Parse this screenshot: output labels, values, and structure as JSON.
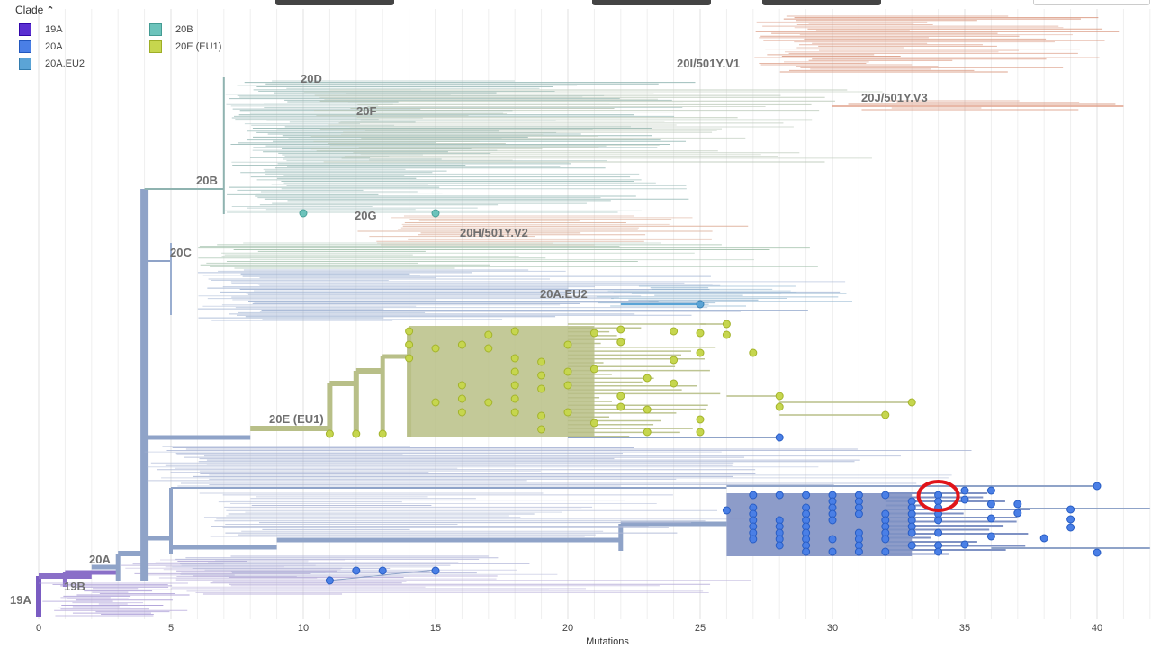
{
  "legend": {
    "title": "Clade",
    "items": [
      {
        "label": "19A",
        "color": "#5a2fd1"
      },
      {
        "label": "20A",
        "color": "#4a7fe6"
      },
      {
        "label": "20A.EU2",
        "color": "#5ba4d6"
      },
      {
        "label": "20B",
        "color": "#6cc3bb"
      },
      {
        "label": "20E (EU1)",
        "color": "#c6d64e"
      }
    ]
  },
  "chart_data": {
    "type": "tree",
    "xlabel": "Mutations",
    "x_ticks": [
      0,
      5,
      10,
      15,
      20,
      25,
      30,
      35,
      40
    ],
    "xlim": [
      0,
      42
    ],
    "clade_labels": [
      {
        "label": "19A",
        "x": 0
      },
      {
        "label": "19B",
        "x": 1
      },
      {
        "label": "20A",
        "x": 3
      },
      {
        "label": "20B",
        "x": 4
      },
      {
        "label": "20C",
        "x": 5
      },
      {
        "label": "20D",
        "x": 7
      },
      {
        "label": "20F",
        "x": 13
      },
      {
        "label": "20G",
        "x": 13
      },
      {
        "label": "20H/501Y.V2",
        "x": 16
      },
      {
        "label": "20A.EU2",
        "x": 19
      },
      {
        "label": "20E (EU1)",
        "x": 9
      },
      {
        "label": "20I/501Y.V1",
        "x": 27
      },
      {
        "label": "20J/501Y.V3",
        "x": 31
      }
    ],
    "highlighted_tip_mutations": 34,
    "colors": {
      "20A": "#4a7fe6",
      "20E_EU1": "#c6d64e",
      "20B": "#6cc3bb",
      "20A.EU2": "#5ba4d6",
      "trunk": "#8fa3c8",
      "highlight": "#e0141a"
    }
  }
}
